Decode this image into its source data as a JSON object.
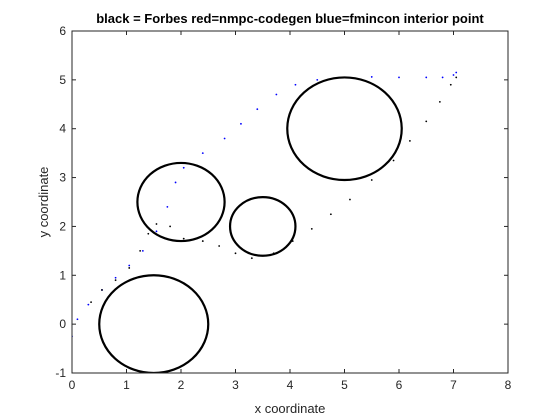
{
  "chart_data": {
    "type": "scatter",
    "title": "black = Forbes red=nmpc-codegen blue=fmincon interior point",
    "xlabel": "x coordinate",
    "ylabel": "y coordinate",
    "xlim": [
      0,
      8
    ],
    "ylim": [
      -1,
      6
    ],
    "xticks": [
      "0",
      "1",
      "2",
      "3",
      "4",
      "5",
      "6",
      "7",
      "8"
    ],
    "yticks": [
      "-1",
      "0",
      "1",
      "2",
      "3",
      "4",
      "5",
      "6"
    ],
    "grid": false,
    "obstacles": [
      {
        "name": "circle-1",
        "cx": 1.5,
        "cy": 0.0,
        "r": 1.0
      },
      {
        "name": "circle-2",
        "cx": 2.0,
        "cy": 2.5,
        "r": 0.8
      },
      {
        "name": "circle-3",
        "cx": 3.5,
        "cy": 2.0,
        "r": 0.6
      },
      {
        "name": "circle-4",
        "cx": 5.0,
        "cy": 4.0,
        "r": 1.05
      }
    ],
    "series": [
      {
        "color": "#0000ff",
        "points": [
          [
            0.0,
            -0.25
          ],
          [
            0.1,
            0.1
          ],
          [
            0.3,
            0.4
          ],
          [
            0.55,
            0.7
          ],
          [
            0.8,
            0.95
          ],
          [
            1.05,
            1.2
          ],
          [
            1.3,
            1.5
          ],
          [
            1.55,
            1.9
          ],
          [
            1.75,
            2.4
          ],
          [
            1.9,
            2.9
          ],
          [
            2.05,
            3.2
          ],
          [
            2.4,
            3.5
          ],
          [
            2.8,
            3.8
          ],
          [
            3.1,
            4.1
          ],
          [
            3.4,
            4.4
          ],
          [
            3.75,
            4.7
          ],
          [
            4.1,
            4.9
          ],
          [
            4.5,
            5.0
          ],
          [
            5.0,
            5.05
          ],
          [
            5.5,
            5.06
          ],
          [
            6.0,
            5.05
          ],
          [
            6.5,
            5.05
          ],
          [
            6.8,
            5.05
          ],
          [
            7.0,
            5.1
          ],
          [
            7.05,
            5.15
          ]
        ]
      },
      {
        "color": "#000000",
        "points": [
          [
            0.35,
            0.45
          ],
          [
            0.55,
            0.7
          ],
          [
            0.8,
            0.9
          ],
          [
            1.05,
            1.15
          ],
          [
            1.25,
            1.5
          ],
          [
            1.4,
            1.85
          ],
          [
            1.55,
            2.05
          ],
          [
            1.8,
            2.0
          ],
          [
            2.05,
            1.75
          ],
          [
            2.4,
            1.7
          ],
          [
            2.7,
            1.6
          ],
          [
            3.0,
            1.45
          ],
          [
            3.3,
            1.35
          ],
          [
            3.7,
            1.45
          ],
          [
            4.05,
            1.7
          ],
          [
            4.4,
            1.95
          ],
          [
            4.75,
            2.25
          ],
          [
            5.1,
            2.55
          ],
          [
            5.5,
            2.95
          ],
          [
            5.9,
            3.35
          ],
          [
            6.2,
            3.75
          ],
          [
            6.5,
            4.15
          ],
          [
            6.75,
            4.55
          ],
          [
            6.95,
            4.9
          ],
          [
            7.05,
            5.05
          ]
        ]
      }
    ]
  }
}
